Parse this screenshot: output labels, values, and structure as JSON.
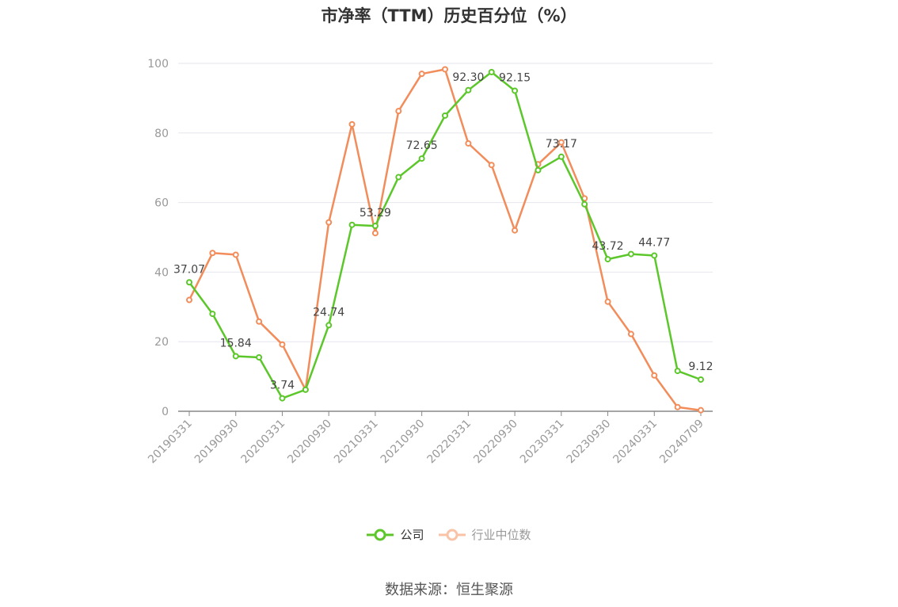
{
  "chart_data": {
    "type": "line",
    "title": "市净率（TTM）历史百分位（%）",
    "xlabel": "",
    "ylabel": "",
    "ylim": [
      0,
      100
    ],
    "yticks": [
      0,
      20,
      40,
      60,
      80,
      100
    ],
    "grid": true,
    "legend_position": "bottom",
    "x": [
      "20190331",
      "20190630",
      "20190930",
      "20191231",
      "20200331",
      "20200630",
      "20200930",
      "20201231",
      "20210331",
      "20210630",
      "20210930",
      "20211231",
      "20220331",
      "20220630",
      "20220930",
      "20221231",
      "20230331",
      "20230630",
      "20230930",
      "20231231",
      "20240331",
      "20240630",
      "20240709"
    ],
    "xtick_labels": [
      "20190331",
      "20190930",
      "20200331",
      "20200930",
      "20210331",
      "20210930",
      "20220331",
      "20220930",
      "20230331",
      "20230930",
      "20240331",
      "20240709"
    ],
    "series": [
      {
        "name": "公司",
        "color": "#5cc72a",
        "values": [
          37.07,
          28.0,
          15.84,
          15.5,
          3.74,
          6.2,
          24.74,
          53.6,
          53.29,
          67.3,
          72.65,
          85.0,
          92.3,
          97.5,
          92.15,
          69.3,
          73.17,
          59.5,
          43.72,
          45.2,
          44.77,
          11.6,
          9.12
        ],
        "labels": {
          "0": "37.07",
          "2": "15.84",
          "4": "3.74",
          "6": "24.74",
          "8": "53.29",
          "10": "72.65",
          "12": "92.30",
          "14": "92.15",
          "16": "73.17",
          "18": "43.72",
          "20": "44.77",
          "22": "9.12"
        }
      },
      {
        "name": "行业中位数",
        "color": "#f28c5a",
        "values": [
          32.0,
          45.5,
          45.0,
          25.8,
          19.2,
          6.2,
          54.3,
          82.5,
          51.2,
          86.3,
          97.0,
          98.3,
          77.0,
          70.8,
          52.0,
          71.0,
          77.3,
          61.2,
          31.5,
          22.2,
          10.3,
          1.2,
          0.3
        ]
      }
    ]
  },
  "legend": {
    "company": "公司",
    "industry": "行业中位数"
  },
  "source": "数据来源：恒生聚源"
}
